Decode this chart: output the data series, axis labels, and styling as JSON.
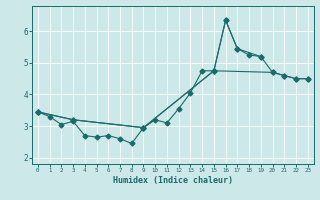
{
  "xlabel": "Humidex (Indice chaleur)",
  "xlim": [
    -0.5,
    23.5
  ],
  "ylim": [
    1.8,
    6.8
  ],
  "xticks": [
    0,
    1,
    2,
    3,
    4,
    5,
    6,
    7,
    8,
    9,
    10,
    11,
    12,
    13,
    14,
    15,
    16,
    17,
    18,
    19,
    20,
    21,
    22,
    23
  ],
  "yticks": [
    2,
    3,
    4,
    5,
    6
  ],
  "bg_color": "#cce8e8",
  "line_color": "#1a6b6b",
  "grid_color": "#ffffff",
  "line1_x": [
    0,
    1,
    2,
    3,
    4,
    5,
    6,
    7,
    8,
    9,
    10,
    11,
    12,
    13,
    14,
    15,
    16,
    17,
    18,
    19
  ],
  "line1_y": [
    3.45,
    3.3,
    3.05,
    3.15,
    2.7,
    2.65,
    2.7,
    2.6,
    2.45,
    2.95,
    3.2,
    3.1,
    3.55,
    4.05,
    4.75,
    4.75,
    6.35,
    5.45,
    5.25,
    5.2
  ],
  "line2_x": [
    0,
    3,
    9,
    15,
    20,
    21,
    22,
    23
  ],
  "line2_y": [
    3.45,
    3.2,
    2.95,
    4.75,
    4.7,
    4.6,
    4.5,
    4.5
  ],
  "line3_x": [
    0,
    3,
    9,
    15,
    16,
    17,
    19,
    20,
    21,
    22,
    23
  ],
  "line3_y": [
    3.45,
    3.2,
    2.95,
    4.75,
    6.35,
    5.45,
    5.2,
    4.7,
    4.6,
    4.5,
    4.5
  ]
}
